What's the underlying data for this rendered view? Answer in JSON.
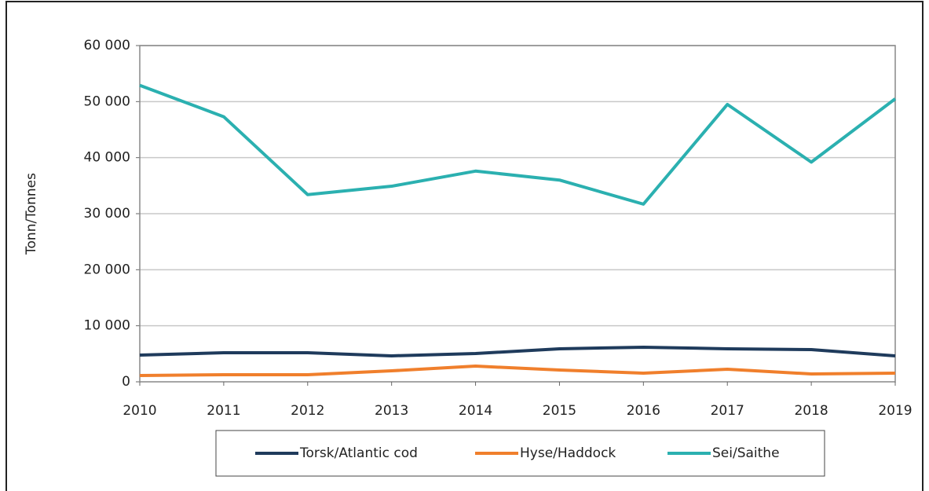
{
  "chart_data": {
    "type": "line",
    "y_label": "Tonn/Tonnes",
    "x": [
      2010,
      2011,
      2012,
      2013,
      2014,
      2015,
      2016,
      2017,
      2018,
      2019
    ],
    "xlim": [
      2010,
      2019
    ],
    "xticks": [
      2010,
      2011,
      2012,
      2013,
      2014,
      2015,
      2016,
      2017,
      2018,
      2019
    ],
    "ylim": [
      0,
      60000
    ],
    "yticks": [
      0,
      {
        "value": 10000,
        "label": "10 000"
      },
      {
        "value": 20000,
        "label": "20 000"
      },
      {
        "value": 30000,
        "label": "30 000"
      },
      {
        "value": 40000,
        "label": "40 000"
      },
      {
        "value": 50000,
        "label": "50 000"
      },
      {
        "value": 60000,
        "label": "60 000"
      }
    ],
    "grid": true,
    "legend": "bottom",
    "series": [
      {
        "name": "Torsk/Atlantic cod",
        "color": "#1f3b5c",
        "values": [
          4770,
          5190,
          5190,
          4630,
          5050,
          5890,
          6170,
          5890,
          5750,
          4630
        ]
      },
      {
        "name": "Hyse/Haddock",
        "color": "#f07f2c",
        "values": [
          1120,
          1260,
          1260,
          1960,
          2800,
          2100,
          1540,
          2240,
          1400,
          1540
        ]
      },
      {
        "name": "Sei/Saithe",
        "color": "#2bb0b0",
        "values": [
          52900,
          47300,
          33400,
          34900,
          37600,
          36000,
          31700,
          49500,
          39200,
          50500
        ]
      }
    ]
  }
}
